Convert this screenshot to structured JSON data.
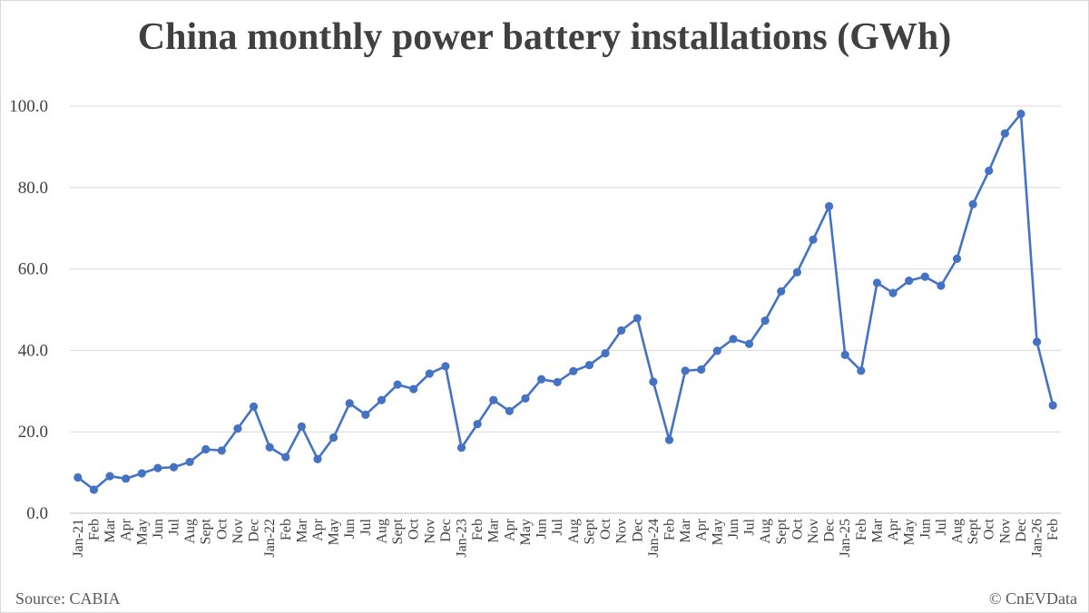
{
  "title": "China monthly power battery installations (GWh)",
  "source": "Source: CABIA",
  "credit": "© CnEVData",
  "colors": {
    "line": "#4472C4",
    "grid": "#d9d9d9",
    "text": "#404040"
  },
  "chart_data": {
    "type": "line",
    "title": "China monthly power battery installations (GWh)",
    "xlabel": "",
    "ylabel": "",
    "ylim": [
      0,
      100
    ],
    "yticks": [
      "0.0",
      "20.0",
      "40.0",
      "60.0",
      "80.0",
      "100.0"
    ],
    "grid": true,
    "legend": "none",
    "categories": [
      "Jan-21",
      "Feb",
      "Mar",
      "Apr",
      "May",
      "Jun",
      "Jul",
      "Aug",
      "Sept",
      "Oct",
      "Nov",
      "Dec",
      "Jan-22",
      "Feb",
      "Mar",
      "Apr",
      "May",
      "Jun",
      "Jul",
      "Aug",
      "Sept",
      "Oct",
      "Nov",
      "Dec",
      "Jan-23",
      "Feb",
      "Mar",
      "Apr",
      "May",
      "Jun",
      "Jul",
      "Aug",
      "Sept",
      "Oct",
      "Nov",
      "Dec",
      "Jan-24",
      "Feb",
      "Mar",
      "Apr",
      "May",
      "Jun",
      "Jul",
      "Aug",
      "Sept",
      "Oct",
      "Nov",
      "Dec",
      "Jan-25",
      "Feb",
      "Mar",
      "Apr",
      "May",
      "Jun",
      "Jul",
      "Aug",
      "Sept",
      "Oct",
      "Nov",
      "Dec",
      "Jan-26",
      "Feb"
    ],
    "series": [
      {
        "values": [
          8.8,
          5.8,
          9.1,
          8.5,
          9.8,
          11.1,
          11.3,
          12.6,
          15.7,
          15.4,
          20.8,
          26.2,
          16.2,
          13.8,
          21.3,
          13.3,
          18.6,
          27.0,
          24.2,
          27.8,
          31.6,
          30.5,
          34.3,
          36.1,
          16.1,
          21.9,
          27.8,
          25.1,
          28.2,
          32.9,
          32.2,
          34.9,
          36.4,
          39.3,
          44.9,
          47.9,
          32.3,
          18.0,
          35.0,
          35.3,
          39.9,
          42.8,
          41.6,
          47.3,
          54.5,
          59.2,
          67.2,
          75.4,
          38.9,
          35.0,
          56.6,
          54.1,
          57.1,
          58.1,
          55.9,
          62.5,
          75.9,
          84.1,
          93.3,
          98.1,
          42.1,
          26.5
        ]
      }
    ]
  }
}
